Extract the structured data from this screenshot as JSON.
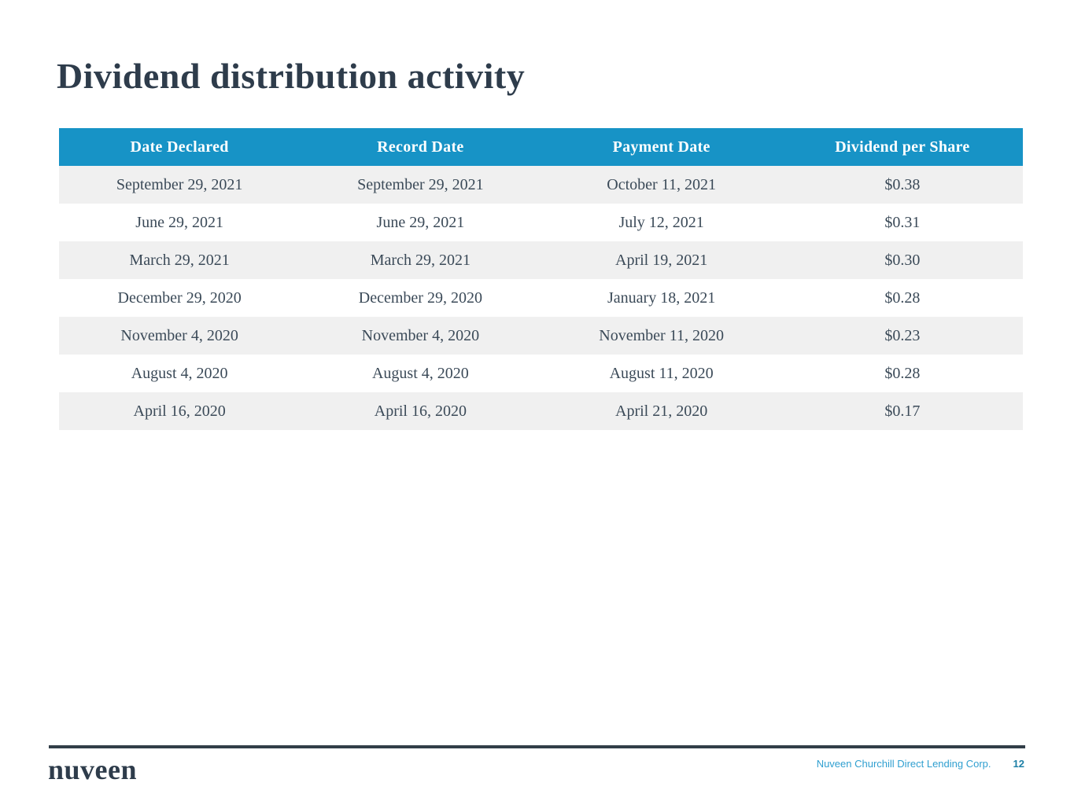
{
  "slide": {
    "title": "Dividend distribution activity"
  },
  "table": {
    "headers": [
      "Date Declared",
      "Record Date",
      "Payment Date",
      "Dividend per Share"
    ],
    "rows": [
      [
        "September 29, 2021",
        "September 29, 2021",
        "October 11, 2021",
        "$0.38"
      ],
      [
        "June 29, 2021",
        "June 29, 2021",
        "July 12, 2021",
        "$0.31"
      ],
      [
        "March 29, 2021",
        "March 29, 2021",
        "April 19, 2021",
        "$0.30"
      ],
      [
        "December 29, 2020",
        "December 29, 2020",
        "January 18, 2021",
        "$0.28"
      ],
      [
        "November 4, 2020",
        "November 4, 2020",
        "November 11, 2020",
        "$0.23"
      ],
      [
        "August 4, 2020",
        "August 4, 2020",
        "August 11, 2020",
        "$0.28"
      ],
      [
        "April 16, 2020",
        "April 16, 2020",
        "April 21, 2020",
        "$0.17"
      ]
    ]
  },
  "footer": {
    "logo": "nuveen",
    "company": "Nuveen Churchill Direct Lending Corp.",
    "page_number": "12"
  },
  "colors": {
    "header_bg": "#1793c6",
    "row_alt_bg": "#f0f0f0",
    "title_text": "#2e3c4b",
    "body_text": "#3b4a58",
    "footer_company_blue": "#2f9fd0",
    "page_number_blue": "#1d7fa6",
    "footer_line": "#323e48"
  }
}
